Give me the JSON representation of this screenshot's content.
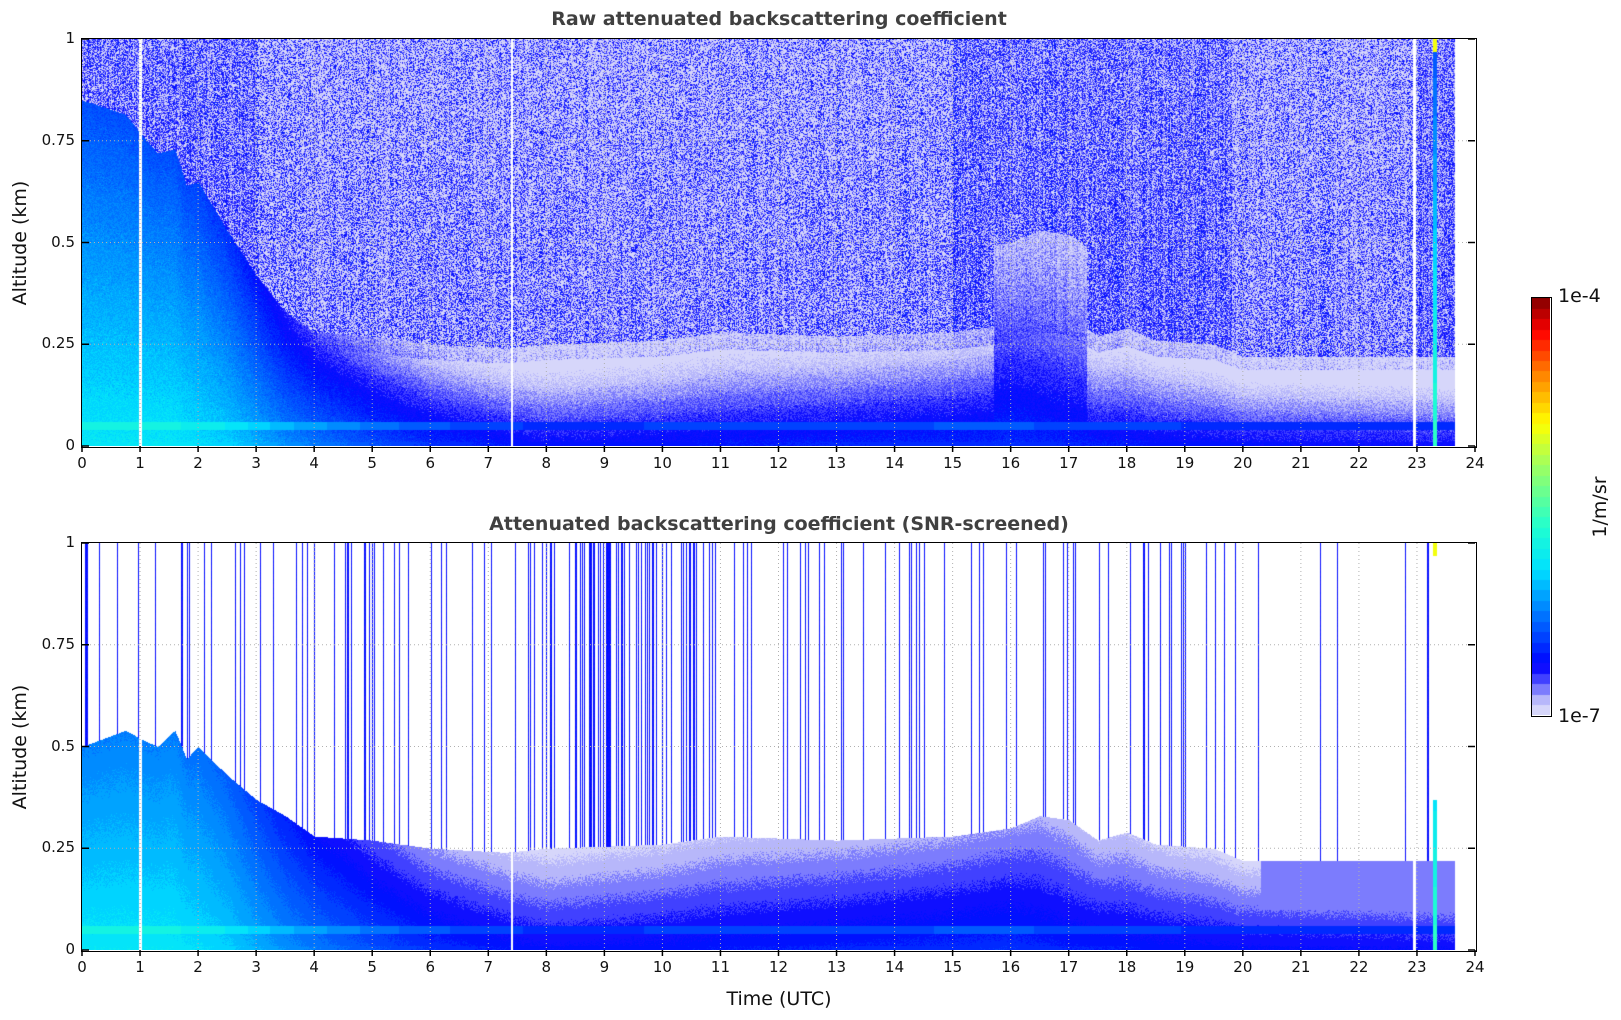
{
  "chart_data": [
    {
      "type": "heatmap",
      "title": "Raw attenuated backscattering coefficient",
      "xlabel": "",
      "ylabel": "Altitude (km)",
      "xlim": [
        0,
        24
      ],
      "ylim": [
        0,
        1
      ],
      "xticks": [
        "0",
        "1",
        "2",
        "3",
        "4",
        "5",
        "6",
        "7",
        "8",
        "9",
        "10",
        "11",
        "12",
        "13",
        "14",
        "15",
        "16",
        "17",
        "18",
        "19",
        "20",
        "21",
        "22",
        "23",
        "24"
      ],
      "yticks": [
        "0",
        "0.25",
        "0.5",
        "0.75",
        "1"
      ],
      "grid": true,
      "screened": false
    },
    {
      "type": "heatmap",
      "title": "Attenuated backscattering coefficient (SNR-screened)",
      "xlabel": "Time (UTC)",
      "ylabel": "Altitude (km)",
      "xlim": [
        0,
        24
      ],
      "ylim": [
        0,
        1
      ],
      "xticks": [
        "0",
        "1",
        "2",
        "3",
        "4",
        "5",
        "6",
        "7",
        "8",
        "9",
        "10",
        "11",
        "12",
        "13",
        "14",
        "15",
        "16",
        "17",
        "18",
        "19",
        "20",
        "21",
        "22",
        "23",
        "24"
      ],
      "yticks": [
        "0",
        "0.25",
        "0.5",
        "0.75",
        "1"
      ],
      "grid": true,
      "screened": true
    }
  ],
  "shared": {
    "data_end_hour": 23.65,
    "gap_hours": [
      1.0,
      7.4,
      22.95
    ],
    "spike_hour": 23.3,
    "layer_top_km": {
      "t": [
        0,
        0.75,
        1.0,
        1.3,
        1.6,
        1.8,
        2.0,
        2.5,
        3.0,
        3.5,
        4.0,
        5.0,
        6.0,
        7.3,
        8.0,
        10.0,
        11.0,
        13.0,
        15.0,
        16.0,
        16.5,
        17.0,
        17.5,
        18.0,
        18.5,
        19.5,
        20.0,
        23.65
      ],
      "z": [
        0.5,
        0.54,
        0.52,
        0.5,
        0.54,
        0.47,
        0.5,
        0.43,
        0.37,
        0.33,
        0.28,
        0.27,
        0.25,
        0.24,
        0.25,
        0.26,
        0.28,
        0.27,
        0.28,
        0.3,
        0.33,
        0.32,
        0.27,
        0.29,
        0.26,
        0.25,
        0.22,
        0.22
      ]
    },
    "surface_log10_backscatter": {
      "t": [
        0,
        1.5,
        2.5,
        3.5,
        5,
        6,
        8,
        16,
        17,
        20,
        23.65
      ],
      "v": [
        -5.9,
        -5.9,
        -6.0,
        -6.2,
        -6.4,
        -6.5,
        -6.62,
        -6.5,
        -6.55,
        -6.62,
        -6.65
      ]
    }
  },
  "colorbar": {
    "label": "1/m/sr",
    "max_label": "1e-4",
    "min_label": "1e-7",
    "range_log10": [
      -7,
      -4
    ],
    "stops": [
      [
        "0",
        "#e6e6fa"
      ],
      [
        "0.04",
        "#b4b4fa"
      ],
      [
        "0.08",
        "#5050ff"
      ],
      [
        "0.12",
        "#0000ff"
      ],
      [
        "0.35",
        "#00e0ff"
      ],
      [
        "0.45",
        "#20ffd0"
      ],
      [
        "0.6",
        "#a0ff60"
      ],
      [
        "0.7",
        "#ffff00"
      ],
      [
        "0.82",
        "#ff8000"
      ],
      [
        "0.92",
        "#ff0000"
      ],
      [
        "1",
        "#800000"
      ]
    ]
  }
}
